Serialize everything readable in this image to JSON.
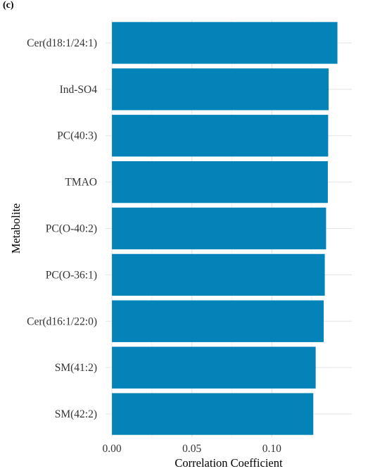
{
  "panel_label": "(c)",
  "chart_data": {
    "type": "bar",
    "orientation": "horizontal",
    "categories": [
      "Cer(d18:1/24:1)",
      "Ind-SO4",
      "PC(40:3)",
      "TMAO",
      "PC(O-40:2)",
      "PC(O-36:1)",
      "Cer(d16:1/22:0)",
      "SM(41:2)",
      "SM(42:2)"
    ],
    "values": [
      0.141,
      0.1355,
      0.1352,
      0.135,
      0.1339,
      0.1331,
      0.1324,
      0.1274,
      0.1259
    ],
    "xlabel": "Correlation Coefficient",
    "ylabel": "Metabolite",
    "xlim": [
      -0.004,
      0.15
    ],
    "xticks": [
      0.0,
      0.05,
      0.1
    ],
    "xtick_labels": [
      "0.00",
      "0.05",
      "0.10"
    ],
    "bar_color": "#0383b8",
    "grid": true,
    "legend": "none"
  }
}
